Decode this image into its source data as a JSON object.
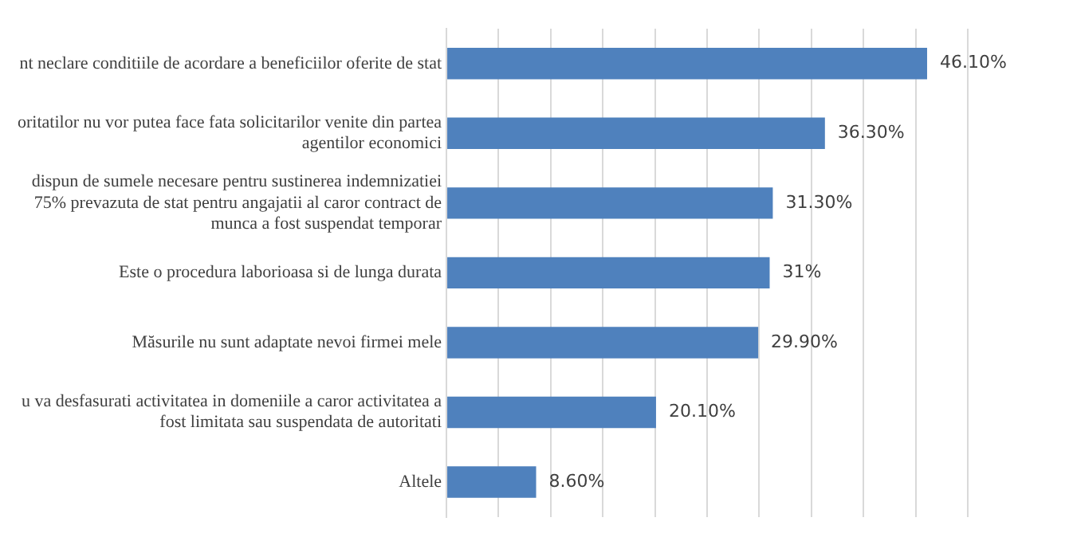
{
  "chart_data": {
    "type": "bar",
    "orientation": "horizontal",
    "categories": [
      "nt neclare conditiile de acordare a beneficiilor oferite de stat",
      "oritatilor nu vor putea face fata solicitarilor venite din partea\nagentilor economici",
      "dispun de sumele necesare pentru sustinerea indemnizatiei\n75% prevazuta de stat pentru angajatii al caror contract de\nmunca a fost suspendat temporar",
      "Este o procedura laborioasa si de lunga durata",
      "Măsurile nu sunt adaptate nevoi firmei mele",
      "u va desfasurati activitatea in domeniile a caror activitatea a\nfost limitata sau suspendata de autoritati",
      "Altele"
    ],
    "values": [
      46.1,
      36.3,
      31.3,
      31,
      29.9,
      20.1,
      8.6
    ],
    "value_labels": [
      "46.10%",
      "36.30%",
      "31.30%",
      "31%",
      "29.90%",
      "20.10%",
      "8.60%"
    ],
    "color": "#4f81bd",
    "xlim": [
      0,
      50
    ],
    "xticks": [
      {
        "value": 0,
        "label": null
      },
      {
        "value": 5,
        "label": null
      },
      {
        "value": 10,
        "label": null
      },
      {
        "value": 15,
        "label": null
      },
      {
        "value": 20,
        "label": null
      },
      {
        "value": 25,
        "label": null
      },
      {
        "value": 30,
        "label": null
      },
      {
        "value": 35,
        "label": null
      },
      {
        "value": 40,
        "label": null
      },
      {
        "value": 45,
        "label": null
      },
      {
        "value": 50,
        "label": null
      }
    ],
    "tick_labels": "y",
    "grid": "x",
    "legend": false
  }
}
